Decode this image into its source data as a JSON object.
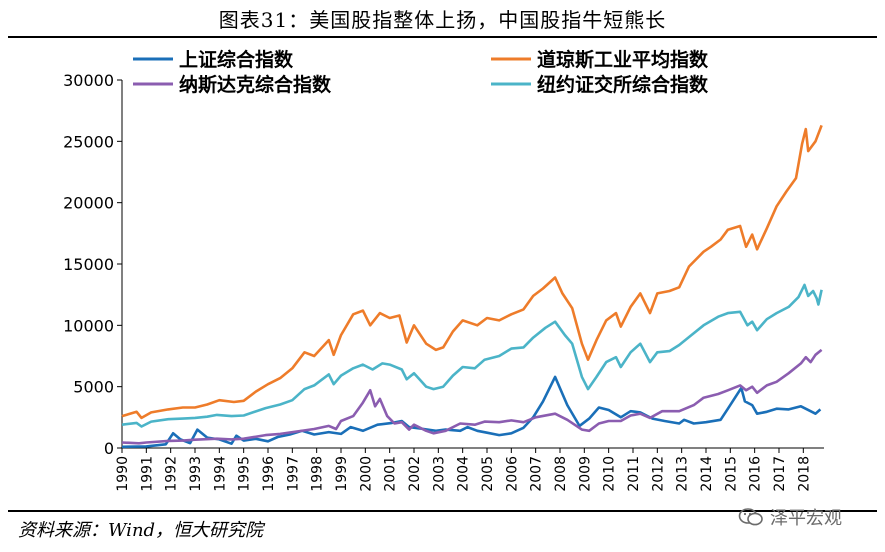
{
  "header": {
    "title": "图表31：美国股指整体上扬，中国股指牛短熊长"
  },
  "footer": {
    "source": "资料来源：Wind，恒大研究院",
    "watermark": "泽平宏观"
  },
  "colors": {
    "sse": "#1a6fb8",
    "dow": "#ee7c2a",
    "nasdaq": "#8b5db0",
    "nyse": "#4bb4c8"
  },
  "chart_data": {
    "type": "line",
    "title": "图表31：美国股指整体上扬，中国股指牛短熊长",
    "xlabel": "",
    "ylabel": "",
    "ylim": [
      0,
      30000
    ],
    "yticks": [
      "0",
      "5000",
      "10000",
      "15000",
      "20000",
      "25000",
      "30000"
    ],
    "xticks": [
      "1990",
      "1991",
      "1992",
      "1993",
      "1994",
      "1995",
      "1996",
      "1997",
      "1998",
      "1999",
      "2000",
      "2001",
      "2002",
      "2003",
      "2004",
      "2005",
      "2006",
      "2007",
      "2008",
      "2009",
      "2010",
      "2011",
      "2012",
      "2013",
      "2014",
      "2015",
      "2016",
      "2017",
      "2018"
    ],
    "grid": false,
    "legend": "top",
    "series": [
      {
        "name": "上证综合指数",
        "color": "#1a6fb8",
        "points": [
          [
            1990.0,
            100
          ],
          [
            1991.0,
            130
          ],
          [
            1991.8,
            300
          ],
          [
            1992.1,
            1200
          ],
          [
            1992.4,
            700
          ],
          [
            1992.8,
            400
          ],
          [
            1993.1,
            1500
          ],
          [
            1993.5,
            850
          ],
          [
            1994.0,
            700
          ],
          [
            1994.5,
            350
          ],
          [
            1994.7,
            1000
          ],
          [
            1995.0,
            600
          ],
          [
            1995.5,
            750
          ],
          [
            1996.0,
            550
          ],
          [
            1996.4,
            900
          ],
          [
            1996.9,
            1100
          ],
          [
            1997.4,
            1400
          ],
          [
            1997.9,
            1100
          ],
          [
            1998.5,
            1300
          ],
          [
            1999.0,
            1150
          ],
          [
            1999.4,
            1700
          ],
          [
            1999.9,
            1400
          ],
          [
            2000.5,
            1900
          ],
          [
            2001.1,
            2050
          ],
          [
            2001.5,
            2200
          ],
          [
            2001.8,
            1700
          ],
          [
            2002.4,
            1550
          ],
          [
            2002.9,
            1400
          ],
          [
            2003.3,
            1500
          ],
          [
            2003.9,
            1400
          ],
          [
            2004.2,
            1700
          ],
          [
            2004.6,
            1400
          ],
          [
            2005.0,
            1250
          ],
          [
            2005.5,
            1050
          ],
          [
            2006.0,
            1200
          ],
          [
            2006.5,
            1650
          ],
          [
            2006.9,
            2500
          ],
          [
            2007.3,
            3800
          ],
          [
            2007.8,
            5800
          ],
          [
            2008.3,
            3500
          ],
          [
            2008.8,
            1800
          ],
          [
            2009.2,
            2400
          ],
          [
            2009.6,
            3300
          ],
          [
            2010.0,
            3100
          ],
          [
            2010.5,
            2500
          ],
          [
            2010.9,
            3000
          ],
          [
            2011.3,
            2900
          ],
          [
            2011.8,
            2400
          ],
          [
            2012.3,
            2200
          ],
          [
            2012.9,
            2000
          ],
          [
            2013.1,
            2300
          ],
          [
            2013.5,
            2000
          ],
          [
            2014.0,
            2100
          ],
          [
            2014.6,
            2300
          ],
          [
            2014.9,
            3200
          ],
          [
            2015.45,
            4900
          ],
          [
            2015.6,
            3800
          ],
          [
            2015.9,
            3500
          ],
          [
            2016.1,
            2800
          ],
          [
            2016.5,
            2950
          ],
          [
            2016.9,
            3200
          ],
          [
            2017.4,
            3150
          ],
          [
            2017.9,
            3400
          ],
          [
            2018.3,
            3000
          ],
          [
            2018.5,
            2800
          ],
          [
            2018.7,
            3150
          ]
        ]
      },
      {
        "name": "道琼斯工业平均指数",
        "color": "#ee7c2a",
        "points": [
          [
            1990.0,
            2600
          ],
          [
            1990.6,
            2950
          ],
          [
            1990.8,
            2450
          ],
          [
            1991.2,
            2900
          ],
          [
            1991.9,
            3150
          ],
          [
            1992.5,
            3300
          ],
          [
            1993.0,
            3300
          ],
          [
            1993.5,
            3550
          ],
          [
            1994.0,
            3900
          ],
          [
            1994.6,
            3750
          ],
          [
            1995.0,
            3850
          ],
          [
            1995.5,
            4600
          ],
          [
            1996.0,
            5200
          ],
          [
            1996.5,
            5700
          ],
          [
            1997.0,
            6500
          ],
          [
            1997.5,
            7800
          ],
          [
            1997.9,
            7500
          ],
          [
            1998.5,
            8800
          ],
          [
            1998.7,
            7600
          ],
          [
            1999.0,
            9200
          ],
          [
            1999.5,
            10900
          ],
          [
            1999.9,
            11200
          ],
          [
            2000.2,
            10000
          ],
          [
            2000.6,
            11000
          ],
          [
            2001.0,
            10600
          ],
          [
            2001.4,
            10800
          ],
          [
            2001.7,
            8600
          ],
          [
            2002.0,
            10000
          ],
          [
            2002.5,
            8500
          ],
          [
            2002.9,
            8000
          ],
          [
            2003.2,
            8200
          ],
          [
            2003.6,
            9500
          ],
          [
            2004.0,
            10400
          ],
          [
            2004.6,
            10000
          ],
          [
            2005.0,
            10600
          ],
          [
            2005.5,
            10400
          ],
          [
            2006.0,
            10900
          ],
          [
            2006.5,
            11300
          ],
          [
            2006.9,
            12400
          ],
          [
            2007.3,
            13000
          ],
          [
            2007.8,
            13900
          ],
          [
            2008.1,
            12600
          ],
          [
            2008.5,
            11400
          ],
          [
            2008.9,
            8500
          ],
          [
            2009.15,
            7200
          ],
          [
            2009.5,
            8800
          ],
          [
            2009.9,
            10400
          ],
          [
            2010.3,
            11000
          ],
          [
            2010.5,
            9900
          ],
          [
            2010.9,
            11500
          ],
          [
            2011.3,
            12600
          ],
          [
            2011.7,
            11000
          ],
          [
            2012.0,
            12600
          ],
          [
            2012.5,
            12800
          ],
          [
            2012.9,
            13100
          ],
          [
            2013.3,
            14800
          ],
          [
            2013.9,
            16000
          ],
          [
            2014.2,
            16400
          ],
          [
            2014.6,
            17000
          ],
          [
            2014.9,
            17800
          ],
          [
            2015.4,
            18100
          ],
          [
            2015.65,
            16400
          ],
          [
            2015.9,
            17400
          ],
          [
            2016.1,
            16200
          ],
          [
            2016.5,
            17900
          ],
          [
            2016.9,
            19700
          ],
          [
            2017.3,
            20900
          ],
          [
            2017.7,
            22000
          ],
          [
            2017.95,
            24800
          ],
          [
            2018.1,
            26000
          ],
          [
            2018.2,
            24200
          ],
          [
            2018.5,
            25000
          ],
          [
            2018.75,
            26300
          ]
        ]
      },
      {
        "name": "纳斯达克综合指数",
        "color": "#8b5db0",
        "points": [
          [
            1990.0,
            450
          ],
          [
            1990.7,
            380
          ],
          [
            1991.0,
            450
          ],
          [
            1991.9,
            580
          ],
          [
            1992.5,
            600
          ],
          [
            1993.0,
            680
          ],
          [
            1993.9,
            760
          ],
          [
            1994.5,
            700
          ],
          [
            1995.0,
            760
          ],
          [
            1995.9,
            1050
          ],
          [
            1996.5,
            1150
          ],
          [
            1997.0,
            1300
          ],
          [
            1997.9,
            1550
          ],
          [
            1998.5,
            1800
          ],
          [
            1998.8,
            1550
          ],
          [
            1999.0,
            2200
          ],
          [
            1999.5,
            2600
          ],
          [
            1999.9,
            3700
          ],
          [
            2000.2,
            4700
          ],
          [
            2000.4,
            3400
          ],
          [
            2000.6,
            4000
          ],
          [
            2000.9,
            2600
          ],
          [
            2001.2,
            2000
          ],
          [
            2001.5,
            2100
          ],
          [
            2001.8,
            1500
          ],
          [
            2002.0,
            1900
          ],
          [
            2002.5,
            1400
          ],
          [
            2002.8,
            1200
          ],
          [
            2003.3,
            1400
          ],
          [
            2003.9,
            2000
          ],
          [
            2004.5,
            1900
          ],
          [
            2004.9,
            2150
          ],
          [
            2005.5,
            2100
          ],
          [
            2006.0,
            2250
          ],
          [
            2006.5,
            2100
          ],
          [
            2007.0,
            2500
          ],
          [
            2007.8,
            2800
          ],
          [
            2008.3,
            2300
          ],
          [
            2008.9,
            1500
          ],
          [
            2009.2,
            1400
          ],
          [
            2009.6,
            2000
          ],
          [
            2010.0,
            2200
          ],
          [
            2010.5,
            2200
          ],
          [
            2010.9,
            2650
          ],
          [
            2011.3,
            2800
          ],
          [
            2011.7,
            2450
          ],
          [
            2012.2,
            3000
          ],
          [
            2012.9,
            3000
          ],
          [
            2013.5,
            3500
          ],
          [
            2013.9,
            4100
          ],
          [
            2014.5,
            4400
          ],
          [
            2014.9,
            4700
          ],
          [
            2015.4,
            5100
          ],
          [
            2015.65,
            4700
          ],
          [
            2015.9,
            5000
          ],
          [
            2016.1,
            4500
          ],
          [
            2016.5,
            5100
          ],
          [
            2016.9,
            5400
          ],
          [
            2017.4,
            6100
          ],
          [
            2017.9,
            6900
          ],
          [
            2018.1,
            7400
          ],
          [
            2018.3,
            7000
          ],
          [
            2018.5,
            7600
          ],
          [
            2018.75,
            8000
          ]
        ]
      },
      {
        "name": "纽约证交所综合指数",
        "color": "#4bb4c8",
        "points": [
          [
            1990.0,
            1900
          ],
          [
            1990.6,
            2050
          ],
          [
            1990.8,
            1750
          ],
          [
            1991.2,
            2150
          ],
          [
            1991.9,
            2350
          ],
          [
            1992.5,
            2400
          ],
          [
            1993.0,
            2450
          ],
          [
            1993.5,
            2550
          ],
          [
            1993.9,
            2700
          ],
          [
            1994.5,
            2600
          ],
          [
            1995.0,
            2650
          ],
          [
            1995.9,
            3250
          ],
          [
            1996.5,
            3550
          ],
          [
            1997.0,
            3900
          ],
          [
            1997.5,
            4800
          ],
          [
            1997.9,
            5100
          ],
          [
            1998.5,
            6000
          ],
          [
            1998.7,
            5200
          ],
          [
            1999.0,
            5900
          ],
          [
            1999.5,
            6500
          ],
          [
            1999.9,
            6800
          ],
          [
            2000.3,
            6400
          ],
          [
            2000.7,
            6900
          ],
          [
            2001.0,
            6800
          ],
          [
            2001.5,
            6400
          ],
          [
            2001.7,
            5600
          ],
          [
            2002.0,
            6100
          ],
          [
            2002.5,
            5000
          ],
          [
            2002.8,
            4800
          ],
          [
            2003.2,
            5000
          ],
          [
            2003.6,
            5900
          ],
          [
            2004.0,
            6600
          ],
          [
            2004.5,
            6500
          ],
          [
            2004.9,
            7200
          ],
          [
            2005.5,
            7500
          ],
          [
            2006.0,
            8100
          ],
          [
            2006.5,
            8200
          ],
          [
            2006.9,
            9000
          ],
          [
            2007.4,
            9800
          ],
          [
            2007.8,
            10300
          ],
          [
            2008.2,
            9200
          ],
          [
            2008.5,
            8500
          ],
          [
            2008.9,
            5800
          ],
          [
            2009.15,
            4800
          ],
          [
            2009.5,
            5800
          ],
          [
            2009.9,
            7000
          ],
          [
            2010.3,
            7400
          ],
          [
            2010.5,
            6600
          ],
          [
            2010.9,
            7800
          ],
          [
            2011.3,
            8500
          ],
          [
            2011.7,
            7000
          ],
          [
            2012.0,
            7800
          ],
          [
            2012.5,
            7900
          ],
          [
            2012.9,
            8400
          ],
          [
            2013.4,
            9200
          ],
          [
            2013.9,
            10000
          ],
          [
            2014.5,
            10700
          ],
          [
            2014.9,
            11000
          ],
          [
            2015.4,
            11100
          ],
          [
            2015.7,
            10000
          ],
          [
            2015.9,
            10300
          ],
          [
            2016.1,
            9600
          ],
          [
            2016.5,
            10500
          ],
          [
            2016.9,
            11000
          ],
          [
            2017.4,
            11500
          ],
          [
            2017.8,
            12300
          ],
          [
            2018.05,
            13300
          ],
          [
            2018.2,
            12400
          ],
          [
            2018.4,
            12800
          ],
          [
            2018.55,
            12200
          ],
          [
            2018.62,
            11700
          ],
          [
            2018.75,
            12900
          ]
        ]
      }
    ]
  }
}
